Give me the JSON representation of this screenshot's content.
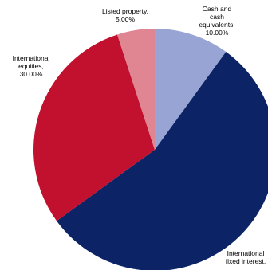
{
  "chart_data": {
    "type": "pie",
    "title": "",
    "start_angle_deg": 0,
    "direction": "clockwise",
    "slices": [
      {
        "label": "Cash and cash equivalents",
        "label_lines": [
          "Cash and",
          "cash",
          "equivalents,",
          "10.00%"
        ],
        "value": 10.0,
        "color": "#98A4D4"
      },
      {
        "label": "International fixed interest",
        "label_lines": [
          "International",
          "fixed interest,"
        ],
        "value": 55.0,
        "color": "#0C2466"
      },
      {
        "label": "International equities",
        "label_lines": [
          "International",
          "equities,",
          "30.00%"
        ],
        "value": 30.0,
        "color": "#C2102F"
      },
      {
        "label": "Listed property",
        "label_lines": [
          "Listed property,",
          "5.00%"
        ],
        "value": 5.0,
        "color": "#E08592"
      }
    ]
  }
}
